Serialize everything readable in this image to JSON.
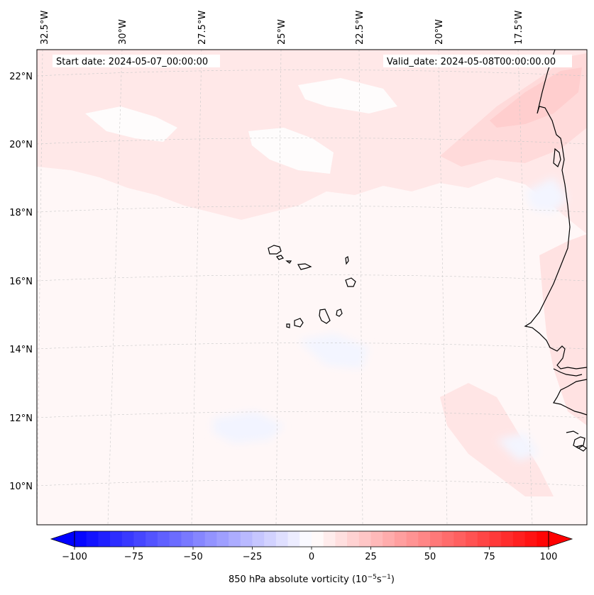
{
  "figure": {
    "start_date": "Start date: 2024-05-07_00:00:00",
    "valid_date": "Valid_date: 2024-05-08T00:00:00.00"
  },
  "map": {
    "lon_labels": [
      "32.5°W",
      "30°W",
      "27.5°W",
      "25°W",
      "22.5°W",
      "20°W",
      "17.5°W"
    ],
    "lat_labels": [
      "22°N",
      "20°N",
      "18°N",
      "16°N",
      "14°N",
      "12°N",
      "10°N"
    ]
  },
  "colorbar": {
    "label_prefix": "850 hPa absolute vorticity (10",
    "label_exp1": "−5",
    "label_mid": "s",
    "label_exp2": "−1",
    "label_suffix": ")",
    "ticks": [
      "−100",
      "−75",
      "−50",
      "−25",
      "0",
      "25",
      "50",
      "75",
      "100"
    ],
    "vmin": -100,
    "vmax": 100,
    "levels": 41,
    "low_color": "#0000ff",
    "mid_color": "#ffffff",
    "high_color": "#ff0000"
  },
  "field": {
    "variable": "850 hPa absolute vorticity",
    "background_value": 3
  }
}
